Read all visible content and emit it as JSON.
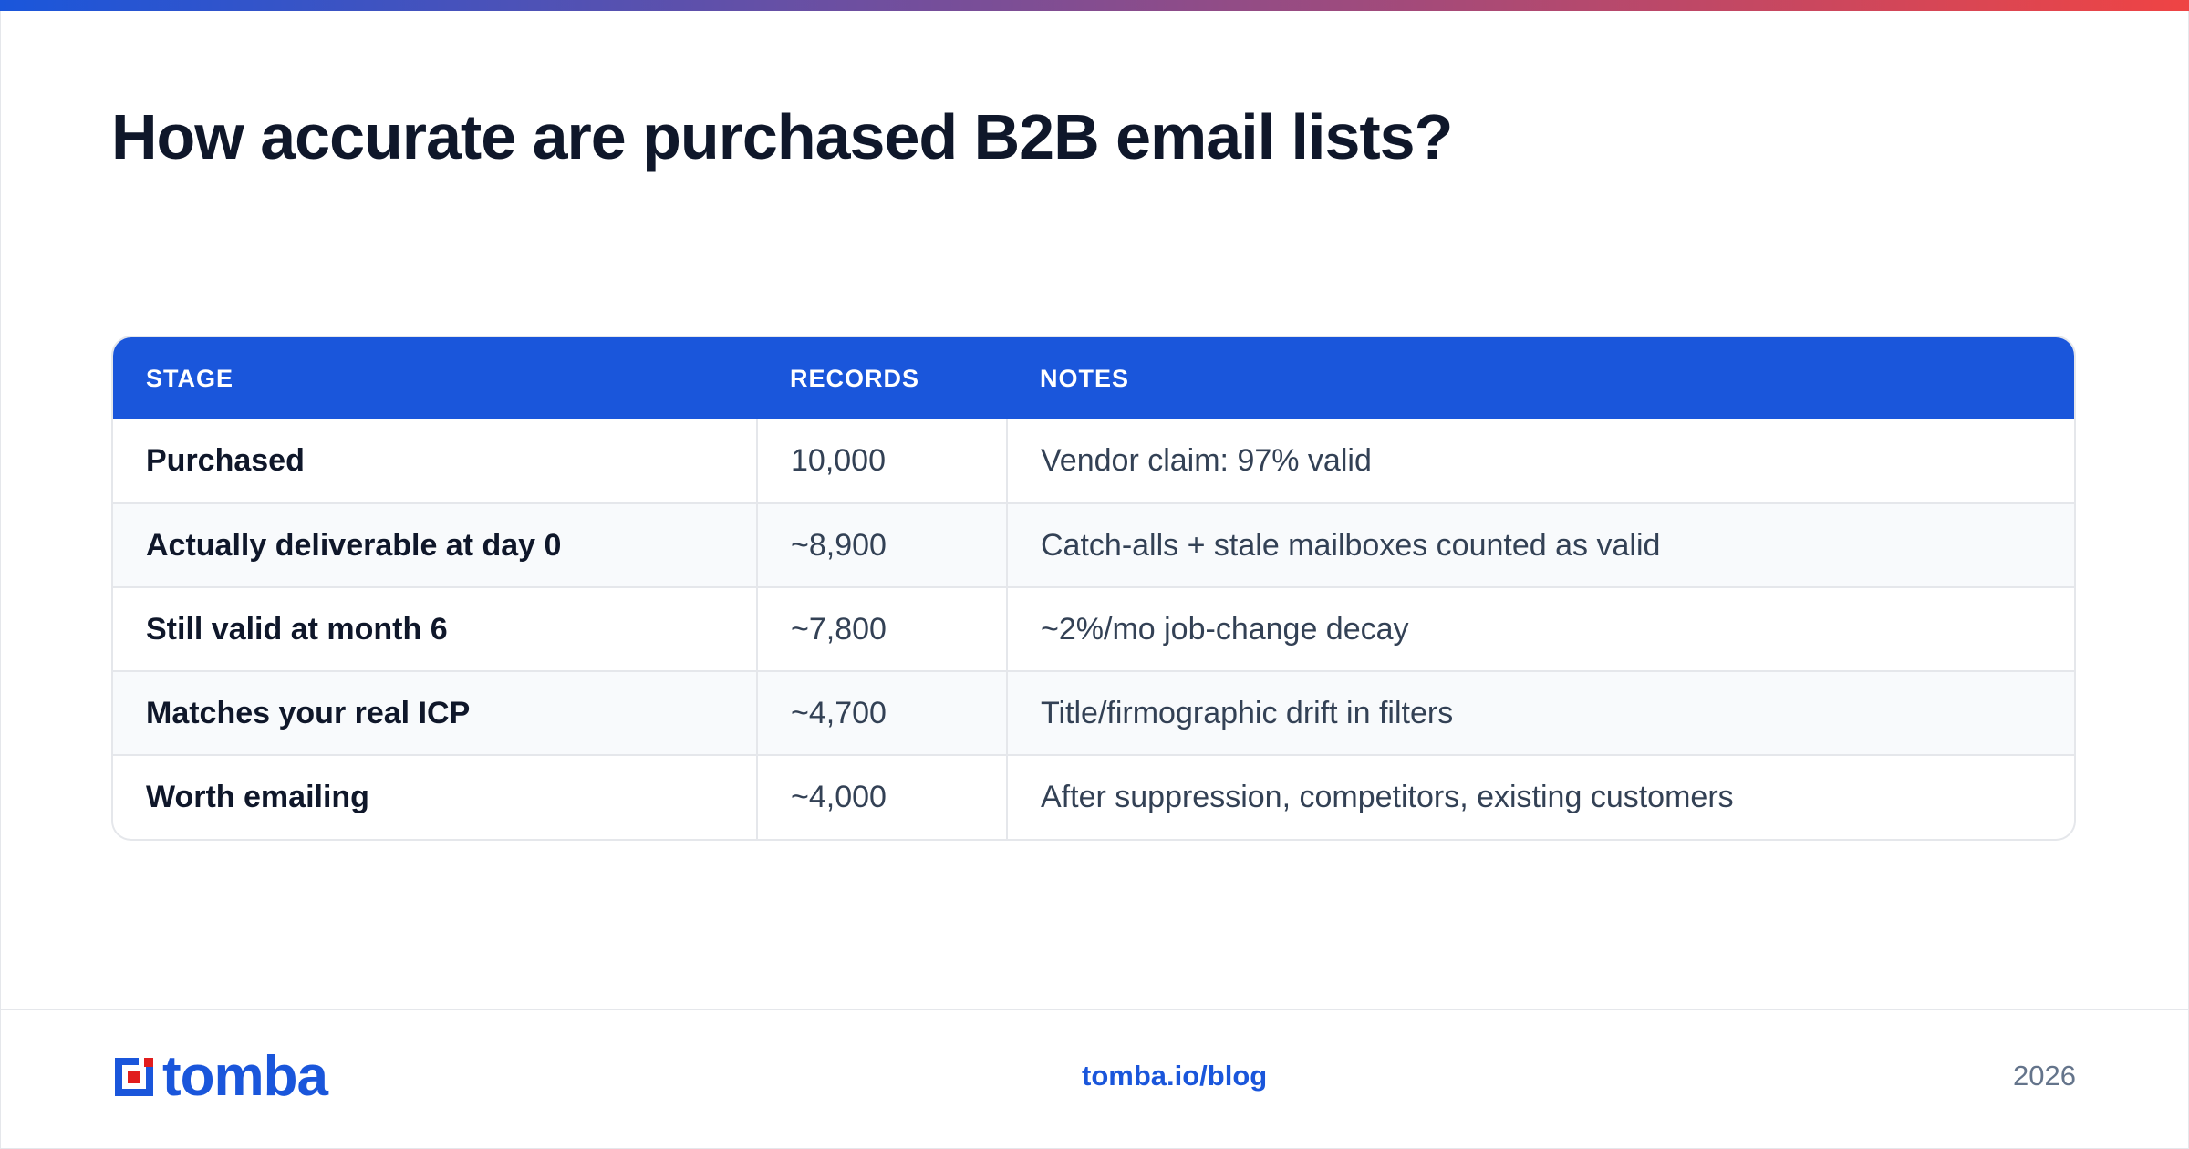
{
  "colors": {
    "accent": "#1a56db",
    "gradient_start": "#1a56db",
    "gradient_end": "#ef4444",
    "logo_red": "#e11d1d"
  },
  "title": "How accurate are purchased B2B email lists?",
  "table": {
    "headers": [
      "STAGE",
      "RECORDS",
      "NOTES"
    ],
    "rows": [
      {
        "stage": "Purchased",
        "records": "10,000",
        "notes": "Vendor claim: 97% valid"
      },
      {
        "stage": "Actually deliverable at day 0",
        "records": "~8,900",
        "notes": "Catch-alls + stale mailboxes counted as valid"
      },
      {
        "stage": "Still valid at month 6",
        "records": "~7,800",
        "notes": "~2%/mo job-change decay"
      },
      {
        "stage": "Matches your real ICP",
        "records": "~4,700",
        "notes": "Title/firmographic drift in filters"
      },
      {
        "stage": "Worth emailing",
        "records": "~4,000",
        "notes": "After suppression, competitors, existing customers"
      }
    ]
  },
  "footer": {
    "logo_text": "tomba",
    "link": "tomba.io/blog",
    "year": "2026"
  }
}
